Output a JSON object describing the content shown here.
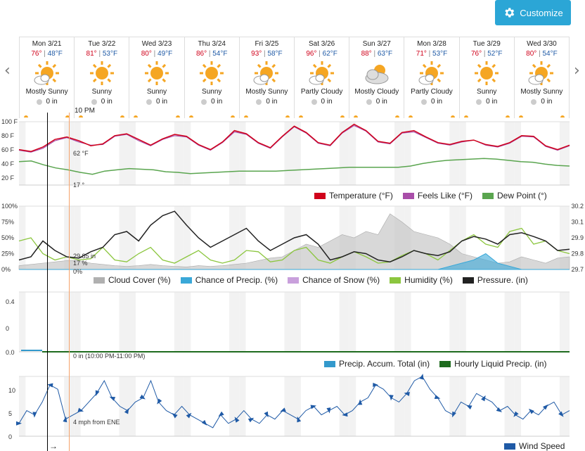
{
  "toolbar": {
    "customize_label": "Customize",
    "customize_icon": "gear-icon"
  },
  "nav": {
    "prev": "‹",
    "next": "›"
  },
  "days": [
    {
      "date": "Mon 3/21",
      "hi": "76°",
      "lo": "48°F",
      "icon": "partly-sunny",
      "cond": "Mostly Sunny",
      "precip": "0 in"
    },
    {
      "date": "Tue 3/22",
      "hi": "81°",
      "lo": "53°F",
      "icon": "sunny",
      "cond": "Sunny",
      "precip": "0 in"
    },
    {
      "date": "Wed 3/23",
      "hi": "80°",
      "lo": "49°F",
      "icon": "sunny",
      "cond": "Sunny",
      "precip": "0 in"
    },
    {
      "date": "Thu 3/24",
      "hi": "86°",
      "lo": "54°F",
      "icon": "sunny",
      "cond": "Sunny",
      "precip": "0 in"
    },
    {
      "date": "Fri 3/25",
      "hi": "93°",
      "lo": "58°F",
      "icon": "partly-sunny",
      "cond": "Mostly Sunny",
      "precip": "0 in"
    },
    {
      "date": "Sat 3/26",
      "hi": "96°",
      "lo": "62°F",
      "icon": "partly-sunny",
      "cond": "Partly Cloudy",
      "precip": "0 in"
    },
    {
      "date": "Sun 3/27",
      "hi": "88°",
      "lo": "63°F",
      "icon": "cloudy-sun",
      "cond": "Mostly Cloudy",
      "precip": "0 in"
    },
    {
      "date": "Mon 3/28",
      "hi": "71°",
      "lo": "53°F",
      "icon": "partly-sunny",
      "cond": "Partly Cloudy",
      "precip": "0 in"
    },
    {
      "date": "Tue 3/29",
      "hi": "76°",
      "lo": "52°F",
      "icon": "sunny",
      "cond": "Sunny",
      "precip": "0 in"
    },
    {
      "date": "Wed 3/30",
      "hi": "80°",
      "lo": "54°F",
      "icon": "partly-sunny",
      "cond": "Mostly Sunny",
      "precip": "0 in"
    }
  ],
  "cursor": {
    "time": "10 PM",
    "temp": "62 °F",
    "dew": "17 °",
    "pressure": "29.85 in",
    "humidity": "17 %",
    "precip_chance": "0%",
    "precip_accum": "0 in (10:00 PM-11:00 PM)",
    "wind": "4 mph from ENE",
    "arrow": "→"
  },
  "colors": {
    "temperature": "#d0021b",
    "feels_like": "#a94ea9",
    "dew_point": "#5aa54f",
    "cloud": "#b0b0b0",
    "precip_chance": "#3aa8d8",
    "snow": "#c9a0dc",
    "humidity": "#8cc63f",
    "pressure": "#222222",
    "accum": "#3399cc",
    "liquid": "#1e6b1e",
    "wind": "#1f5aa6"
  },
  "chart_data": [
    {
      "type": "line",
      "ylim": [
        0,
        100
      ],
      "yticks": [
        "100 F",
        "80 F",
        "60 F",
        "40 F",
        "20 F"
      ],
      "series": [
        {
          "name": "Dew Point (°)",
          "color": "dew_point",
          "values": [
            37,
            38,
            32,
            27,
            24,
            20,
            17,
            22,
            24,
            26,
            25,
            24,
            21,
            20,
            18,
            19,
            20,
            21,
            22,
            22,
            22,
            22,
            23,
            24,
            25,
            26,
            27,
            28,
            28,
            28,
            28,
            28,
            30,
            34,
            37,
            39,
            40,
            41,
            42,
            41,
            39,
            37,
            36,
            33,
            31,
            30
          ]
        },
        {
          "name": "Feels Like (°F)",
          "color": "feels_like",
          "values": [
            55,
            52,
            58,
            70,
            75,
            68,
            63,
            64,
            77,
            80,
            70,
            62,
            72,
            78,
            76,
            63,
            55,
            67,
            84,
            80,
            66,
            58,
            76,
            92,
            82,
            66,
            62,
            82,
            94,
            85,
            68,
            65,
            82,
            84,
            75,
            66,
            63,
            68,
            71,
            63,
            60,
            66,
            77,
            76,
            61,
            55,
            62
          ]
        },
        {
          "name": "Temperature (°F)",
          "color": "temperature",
          "values": [
            56,
            53,
            60,
            72,
            76,
            70,
            62,
            65,
            78,
            81,
            72,
            63,
            73,
            80,
            77,
            64,
            56,
            68,
            86,
            81,
            67,
            59,
            77,
            93,
            83,
            67,
            63,
            83,
            96,
            86,
            69,
            66,
            83,
            86,
            76,
            67,
            64,
            69,
            71,
            64,
            61,
            67,
            78,
            77,
            62,
            56,
            63
          ]
        }
      ]
    },
    {
      "type": "area",
      "ylim": [
        0,
        100
      ],
      "yticks": [
        "100%",
        "75%",
        "50%",
        "25%",
        "0%"
      ],
      "y2ticks": [
        "30.2",
        "30.1",
        "29.9",
        "29.8",
        "29.7"
      ],
      "series": [
        {
          "name": "Cloud Cover (%)",
          "color": "cloud",
          "values": [
            6,
            8,
            10,
            12,
            14,
            14,
            10,
            8,
            6,
            5,
            6,
            8,
            6,
            5,
            4,
            6,
            5,
            6,
            8,
            10,
            14,
            18,
            20,
            30,
            40,
            35,
            45,
            55,
            50,
            60,
            55,
            88,
            75,
            60,
            55,
            50,
            40,
            25,
            20,
            15,
            10,
            12,
            20,
            15,
            10,
            18,
            20
          ]
        },
        {
          "name": "Chance of Precip. (%)",
          "color": "precip_chance",
          "values": [
            0,
            0,
            0,
            0,
            0,
            0,
            0,
            0,
            0,
            0,
            0,
            0,
            0,
            0,
            0,
            0,
            0,
            0,
            0,
            0,
            0,
            0,
            0,
            0,
            0,
            0,
            0,
            0,
            0,
            0,
            0,
            0,
            0,
            0,
            0,
            0,
            5,
            10,
            15,
            25,
            10,
            5,
            0,
            0,
            0,
            0,
            0
          ]
        },
        {
          "name": "Chance of Snow (%)",
          "color": "snow",
          "values": [
            0,
            0,
            0,
            0,
            0,
            0,
            0,
            0,
            0,
            0,
            0,
            0,
            0,
            0,
            0,
            0,
            0,
            0,
            0,
            0,
            0,
            0,
            0,
            0,
            0,
            0,
            0,
            0,
            0,
            0,
            0,
            0,
            0,
            0,
            0,
            0,
            0,
            0,
            0,
            0,
            0,
            0,
            0,
            0,
            0,
            0,
            0
          ]
        },
        {
          "name": "Humidity (%)",
          "color": "humidity",
          "values": [
            45,
            50,
            25,
            15,
            20,
            15,
            17,
            35,
            15,
            12,
            25,
            35,
            15,
            10,
            20,
            30,
            15,
            10,
            15,
            30,
            28,
            12,
            15,
            30,
            35,
            15,
            10,
            20,
            28,
            20,
            10,
            12,
            22,
            30,
            25,
            15,
            30,
            45,
            55,
            40,
            35,
            60,
            65,
            40,
            45,
            30,
            25
          ]
        },
        {
          "name": "Pressure. (in)",
          "color": "pressure",
          "values": [
            15,
            20,
            45,
            30,
            20,
            18,
            28,
            35,
            55,
            60,
            45,
            70,
            85,
            92,
            70,
            50,
            35,
            45,
            55,
            65,
            45,
            30,
            40,
            50,
            55,
            40,
            15,
            20,
            28,
            25,
            15,
            12,
            20,
            30,
            25,
            22,
            28,
            45,
            52,
            48,
            40,
            55,
            58,
            52,
            45,
            30,
            32
          ]
        }
      ]
    },
    {
      "type": "bar",
      "ylim": [
        0,
        0.45
      ],
      "yticks": [
        "0.4",
        "0.3",
        "0.2",
        "0.1",
        "0",
        "0.0"
      ],
      "series": [
        {
          "name": "Precip. Accum. Total (in)",
          "color": "accum",
          "values": [
            0
          ]
        },
        {
          "name": "Hourly Liquid Precip. (in)",
          "color": "liquid",
          "values": [
            0
          ]
        }
      ]
    },
    {
      "type": "line",
      "ylim": [
        0,
        14
      ],
      "yticks": [
        "10",
        "5",
        "0"
      ],
      "series": [
        {
          "name": "Wind Speed",
          "color": "wind",
          "values": [
            3,
            6,
            5,
            8,
            12,
            11,
            4,
            5,
            6,
            8,
            10,
            13,
            9,
            7,
            6,
            8,
            9,
            13,
            8,
            6,
            5,
            7,
            5,
            4,
            3,
            2,
            5,
            3,
            4,
            6,
            4,
            3,
            5,
            4,
            6,
            5,
            4,
            6,
            7,
            5,
            6,
            7,
            5,
            6,
            8,
            9,
            12,
            11,
            9,
            8,
            10,
            13,
            14,
            11,
            9,
            6,
            5,
            8,
            7,
            10,
            9,
            8,
            6,
            7,
            5,
            4,
            6,
            5,
            7,
            8,
            5,
            6
          ]
        }
      ]
    }
  ]
}
